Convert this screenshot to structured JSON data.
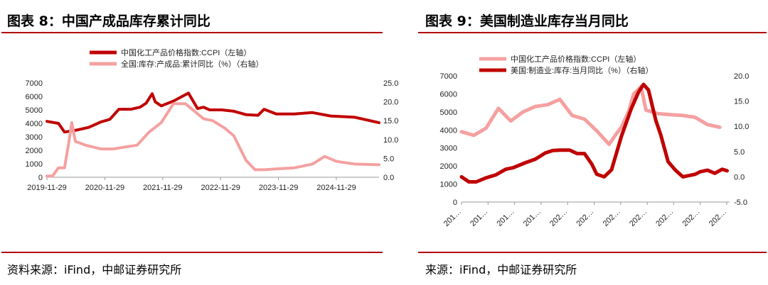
{
  "panels": {
    "left": {
      "title": "图表 8：中国产成品库存累计同比",
      "source": "资料来源：iFind，中邮证券研究所"
    },
    "right": {
      "title": "图表 9：美国制造业库存当月同比",
      "source": "来源：iFind，中邮证券研究所"
    }
  },
  "chart_data": [
    {
      "type": "line",
      "title": "",
      "x_tick_labels": [
        "2019-11-29",
        "2020-11-29",
        "2021-11-29",
        "2022-11-29",
        "2023-11-29",
        "2024-11-29"
      ],
      "y_left": {
        "min": 0,
        "max": 7000,
        "ticks": [
          0,
          1000,
          2000,
          3000,
          4000,
          5000,
          6000,
          7000
        ]
      },
      "y_right": {
        "min": 0,
        "max": 25,
        "ticks": [
          "0.0",
          "5.0",
          "10.0",
          "15.0",
          "20.0",
          "25.0"
        ]
      },
      "legend_position": "top",
      "series": [
        {
          "name": "中国化工产品价格指数:CCPI（左轴）",
          "axis": "left",
          "color": "#c00000",
          "x": [
            2019.91,
            2020.1,
            2020.2,
            2020.4,
            2020.6,
            2020.8,
            2020.95,
            2021.1,
            2021.3,
            2021.45,
            2021.55,
            2021.65,
            2021.7,
            2021.8,
            2022.0,
            2022.25,
            2022.4,
            2022.5,
            2022.6,
            2022.8,
            2023.0,
            2023.2,
            2023.4,
            2023.5,
            2023.7,
            2024.0,
            2024.3,
            2024.6,
            2024.8,
            2025.0,
            2025.4
          ],
          "y": [
            4150,
            4000,
            3350,
            3500,
            3700,
            4100,
            4300,
            5050,
            5050,
            5200,
            5500,
            6200,
            5600,
            5300,
            5650,
            6250,
            5100,
            5200,
            5000,
            5000,
            4900,
            4650,
            4600,
            5050,
            4700,
            4700,
            4800,
            4550,
            4500,
            4450,
            4050
          ]
        },
        {
          "name": "全国:库存:产成品:累计同比（%）（右轴）",
          "axis": "right",
          "color": "#f5a0a0",
          "x": [
            2019.91,
            2020.0,
            2020.1,
            2020.2,
            2020.27,
            2020.32,
            2020.38,
            2020.55,
            2020.8,
            2021.0,
            2021.2,
            2021.4,
            2021.6,
            2021.8,
            2022.0,
            2022.2,
            2022.35,
            2022.5,
            2022.65,
            2022.85,
            2023.0,
            2023.2,
            2023.35,
            2023.5,
            2023.7,
            2024.0,
            2024.3,
            2024.5,
            2024.7,
            2025.0,
            2025.4
          ],
          "y": [
            0.3,
            0.3,
            2.5,
            2.5,
            9.0,
            14.5,
            9.5,
            8.5,
            7.5,
            7.5,
            8.0,
            8.5,
            12.0,
            14.5,
            19.5,
            19.5,
            17.5,
            15.5,
            15.0,
            13.0,
            11.0,
            4.5,
            2.0,
            2.0,
            2.2,
            2.5,
            3.5,
            5.5,
            4.2,
            3.5,
            3.3
          ]
        }
      ]
    },
    {
      "type": "line",
      "title": "",
      "x_tick_labels": [
        "201…",
        "201…",
        "201…",
        "201…",
        "202…",
        "202…",
        "202…",
        "202…",
        "202…",
        "202…",
        "202…"
      ],
      "y_left": {
        "min": 0,
        "max": 7000,
        "ticks": [
          0,
          1000,
          2000,
          3000,
          4000,
          5000,
          6000,
          7000
        ]
      },
      "y_right": {
        "min": -5,
        "max": 20,
        "ticks": [
          "-5.0",
          "0.0",
          "5.0",
          "10.0",
          "15.0",
          "20.0"
        ]
      },
      "legend_position": "top",
      "series": [
        {
          "name": "中国化工产品价格指数:CCPI（左轴）",
          "axis": "left",
          "color": "#f5a0a0",
          "x": [
            2015.0,
            2015.5,
            2016.0,
            2016.5,
            2017.0,
            2017.5,
            2018.0,
            2018.5,
            2019.0,
            2019.5,
            2020.0,
            2020.5,
            2021.0,
            2021.3,
            2021.5,
            2021.8,
            2022.0,
            2022.3,
            2022.5,
            2023.0,
            2023.5,
            2024.0,
            2024.5,
            2025.0,
            2025.5
          ],
          "y": [
            3900,
            3700,
            4100,
            5200,
            4500,
            5000,
            5300,
            5400,
            5700,
            4800,
            4600,
            3950,
            3200,
            3800,
            4150,
            5050,
            6000,
            6400,
            5100,
            4900,
            4850,
            4800,
            4700,
            4300,
            4150
          ]
        },
        {
          "name": "美国:制造业:库存:当月同比（%）（右轴）",
          "axis": "right",
          "color": "#c00000",
          "x": [
            2015.0,
            2015.3,
            2015.6,
            2016.0,
            2016.4,
            2016.8,
            2017.1,
            2017.6,
            2018.0,
            2018.4,
            2018.7,
            2019.0,
            2019.4,
            2019.7,
            2020.0,
            2020.3,
            2020.5,
            2020.8,
            2021.1,
            2021.5,
            2021.9,
            2022.2,
            2022.4,
            2022.6,
            2022.9,
            2023.1,
            2023.4,
            2023.7,
            2024.0,
            2024.5,
            2024.7,
            2025.0,
            2025.3,
            2025.6,
            2025.8
          ],
          "y": [
            0.0,
            -1.0,
            -1.0,
            -0.2,
            0.4,
            1.5,
            1.8,
            2.8,
            3.5,
            4.7,
            5.2,
            5.3,
            5.3,
            4.6,
            4.6,
            2.5,
            0.5,
            0.0,
            1.4,
            8.0,
            13.5,
            16.8,
            18.3,
            17.2,
            11.2,
            8.3,
            3.0,
            1.3,
            0.0,
            0.5,
            1.0,
            1.3,
            0.7,
            1.5,
            1.2
          ]
        }
      ]
    }
  ]
}
